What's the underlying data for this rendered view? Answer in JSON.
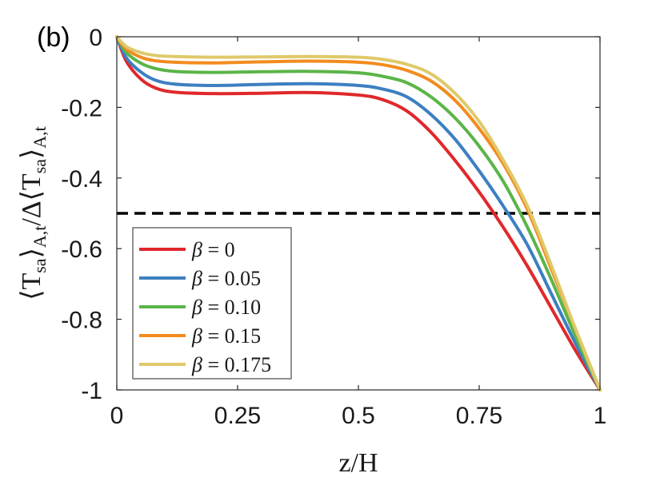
{
  "chart_data": {
    "type": "line",
    "panel_label": "(b)",
    "xlabel": "z/H",
    "ylabel": "⟨T_sa⟩_A,t / Δ⟨T_sa⟩_A,t",
    "ylabel_parts": {
      "num_main": "⟨T",
      "num_sub1": "sa",
      "num_close": "⟩",
      "num_sub2": "A,t",
      "slash": "/",
      "den_main": "Δ⟨T",
      "den_sub1": "sa",
      "den_close": "⟩",
      "den_sub2": "A,t"
    },
    "xlim": [
      0,
      1
    ],
    "ylim": [
      -1,
      0
    ],
    "xticks": [
      0,
      0.25,
      0.5,
      0.75,
      1
    ],
    "xtick_labels": [
      "0",
      "0.25",
      "0.5",
      "0.75",
      "1"
    ],
    "yticks": [
      0,
      -0.2,
      -0.4,
      -0.6,
      -0.8,
      -1
    ],
    "ytick_labels": [
      "0",
      "-0.2",
      "-0.4",
      "-0.6",
      "-0.8",
      "-1"
    ],
    "grid": false,
    "legend_position": "bottom-left",
    "reference_line": {
      "y": -0.5,
      "style": "dashed",
      "color": "#000000"
    },
    "series": [
      {
        "name": "β = 0",
        "label_symbol": "β",
        "label_value": "= 0",
        "color": "#e0282b",
        "x": [
          0,
          0.02,
          0.05,
          0.08,
          0.12,
          0.2,
          0.3,
          0.4,
          0.5,
          0.55,
          0.6,
          0.65,
          0.7,
          0.75,
          0.8,
          0.85,
          0.9,
          0.95,
          1
        ],
        "y": [
          0,
          -0.07,
          -0.12,
          -0.145,
          -0.157,
          -0.161,
          -0.16,
          -0.158,
          -0.165,
          -0.178,
          -0.21,
          -0.27,
          -0.35,
          -0.44,
          -0.54,
          -0.65,
          -0.77,
          -0.89,
          -1
        ]
      },
      {
        "name": "β = 0.05",
        "label_symbol": "β",
        "label_value": "= 0.05",
        "color": "#3d7fc1",
        "x": [
          0,
          0.02,
          0.05,
          0.08,
          0.12,
          0.2,
          0.3,
          0.4,
          0.5,
          0.55,
          0.6,
          0.65,
          0.7,
          0.75,
          0.8,
          0.85,
          0.9,
          0.95,
          1
        ],
        "y": [
          0,
          -0.06,
          -0.1,
          -0.123,
          -0.134,
          -0.138,
          -0.135,
          -0.133,
          -0.138,
          -0.148,
          -0.17,
          -0.22,
          -0.29,
          -0.38,
          -0.48,
          -0.59,
          -0.73,
          -0.87,
          -1
        ]
      },
      {
        "name": "β = 0.10",
        "label_symbol": "β",
        "label_value": "= 0.10",
        "color": "#5bb548",
        "x": [
          0,
          0.02,
          0.05,
          0.08,
          0.12,
          0.2,
          0.3,
          0.4,
          0.5,
          0.55,
          0.6,
          0.65,
          0.7,
          0.75,
          0.8,
          0.85,
          0.9,
          0.95,
          1
        ],
        "y": [
          0,
          -0.045,
          -0.075,
          -0.09,
          -0.098,
          -0.101,
          -0.099,
          -0.098,
          -0.102,
          -0.112,
          -0.13,
          -0.17,
          -0.23,
          -0.31,
          -0.41,
          -0.54,
          -0.69,
          -0.85,
          -1
        ]
      },
      {
        "name": "β = 0.15",
        "label_symbol": "β",
        "label_value": "= 0.15",
        "color": "#f28c1e",
        "x": [
          0,
          0.02,
          0.05,
          0.08,
          0.12,
          0.2,
          0.3,
          0.4,
          0.5,
          0.55,
          0.6,
          0.65,
          0.7,
          0.75,
          0.8,
          0.85,
          0.9,
          0.95,
          1
        ],
        "y": [
          0,
          -0.035,
          -0.058,
          -0.068,
          -0.072,
          -0.074,
          -0.071,
          -0.069,
          -0.072,
          -0.079,
          -0.095,
          -0.125,
          -0.18,
          -0.26,
          -0.36,
          -0.49,
          -0.66,
          -0.83,
          -1
        ]
      },
      {
        "name": "β = 0.175",
        "label_symbol": "β",
        "label_value": "= 0.175",
        "color": "#dfc96a",
        "x": [
          0,
          0.02,
          0.05,
          0.08,
          0.12,
          0.2,
          0.3,
          0.4,
          0.5,
          0.55,
          0.6,
          0.65,
          0.7,
          0.75,
          0.8,
          0.85,
          0.9,
          0.95,
          1
        ],
        "y": [
          0,
          -0.028,
          -0.045,
          -0.053,
          -0.056,
          -0.058,
          -0.057,
          -0.056,
          -0.058,
          -0.064,
          -0.078,
          -0.105,
          -0.16,
          -0.24,
          -0.35,
          -0.48,
          -0.65,
          -0.83,
          -1
        ]
      }
    ]
  }
}
